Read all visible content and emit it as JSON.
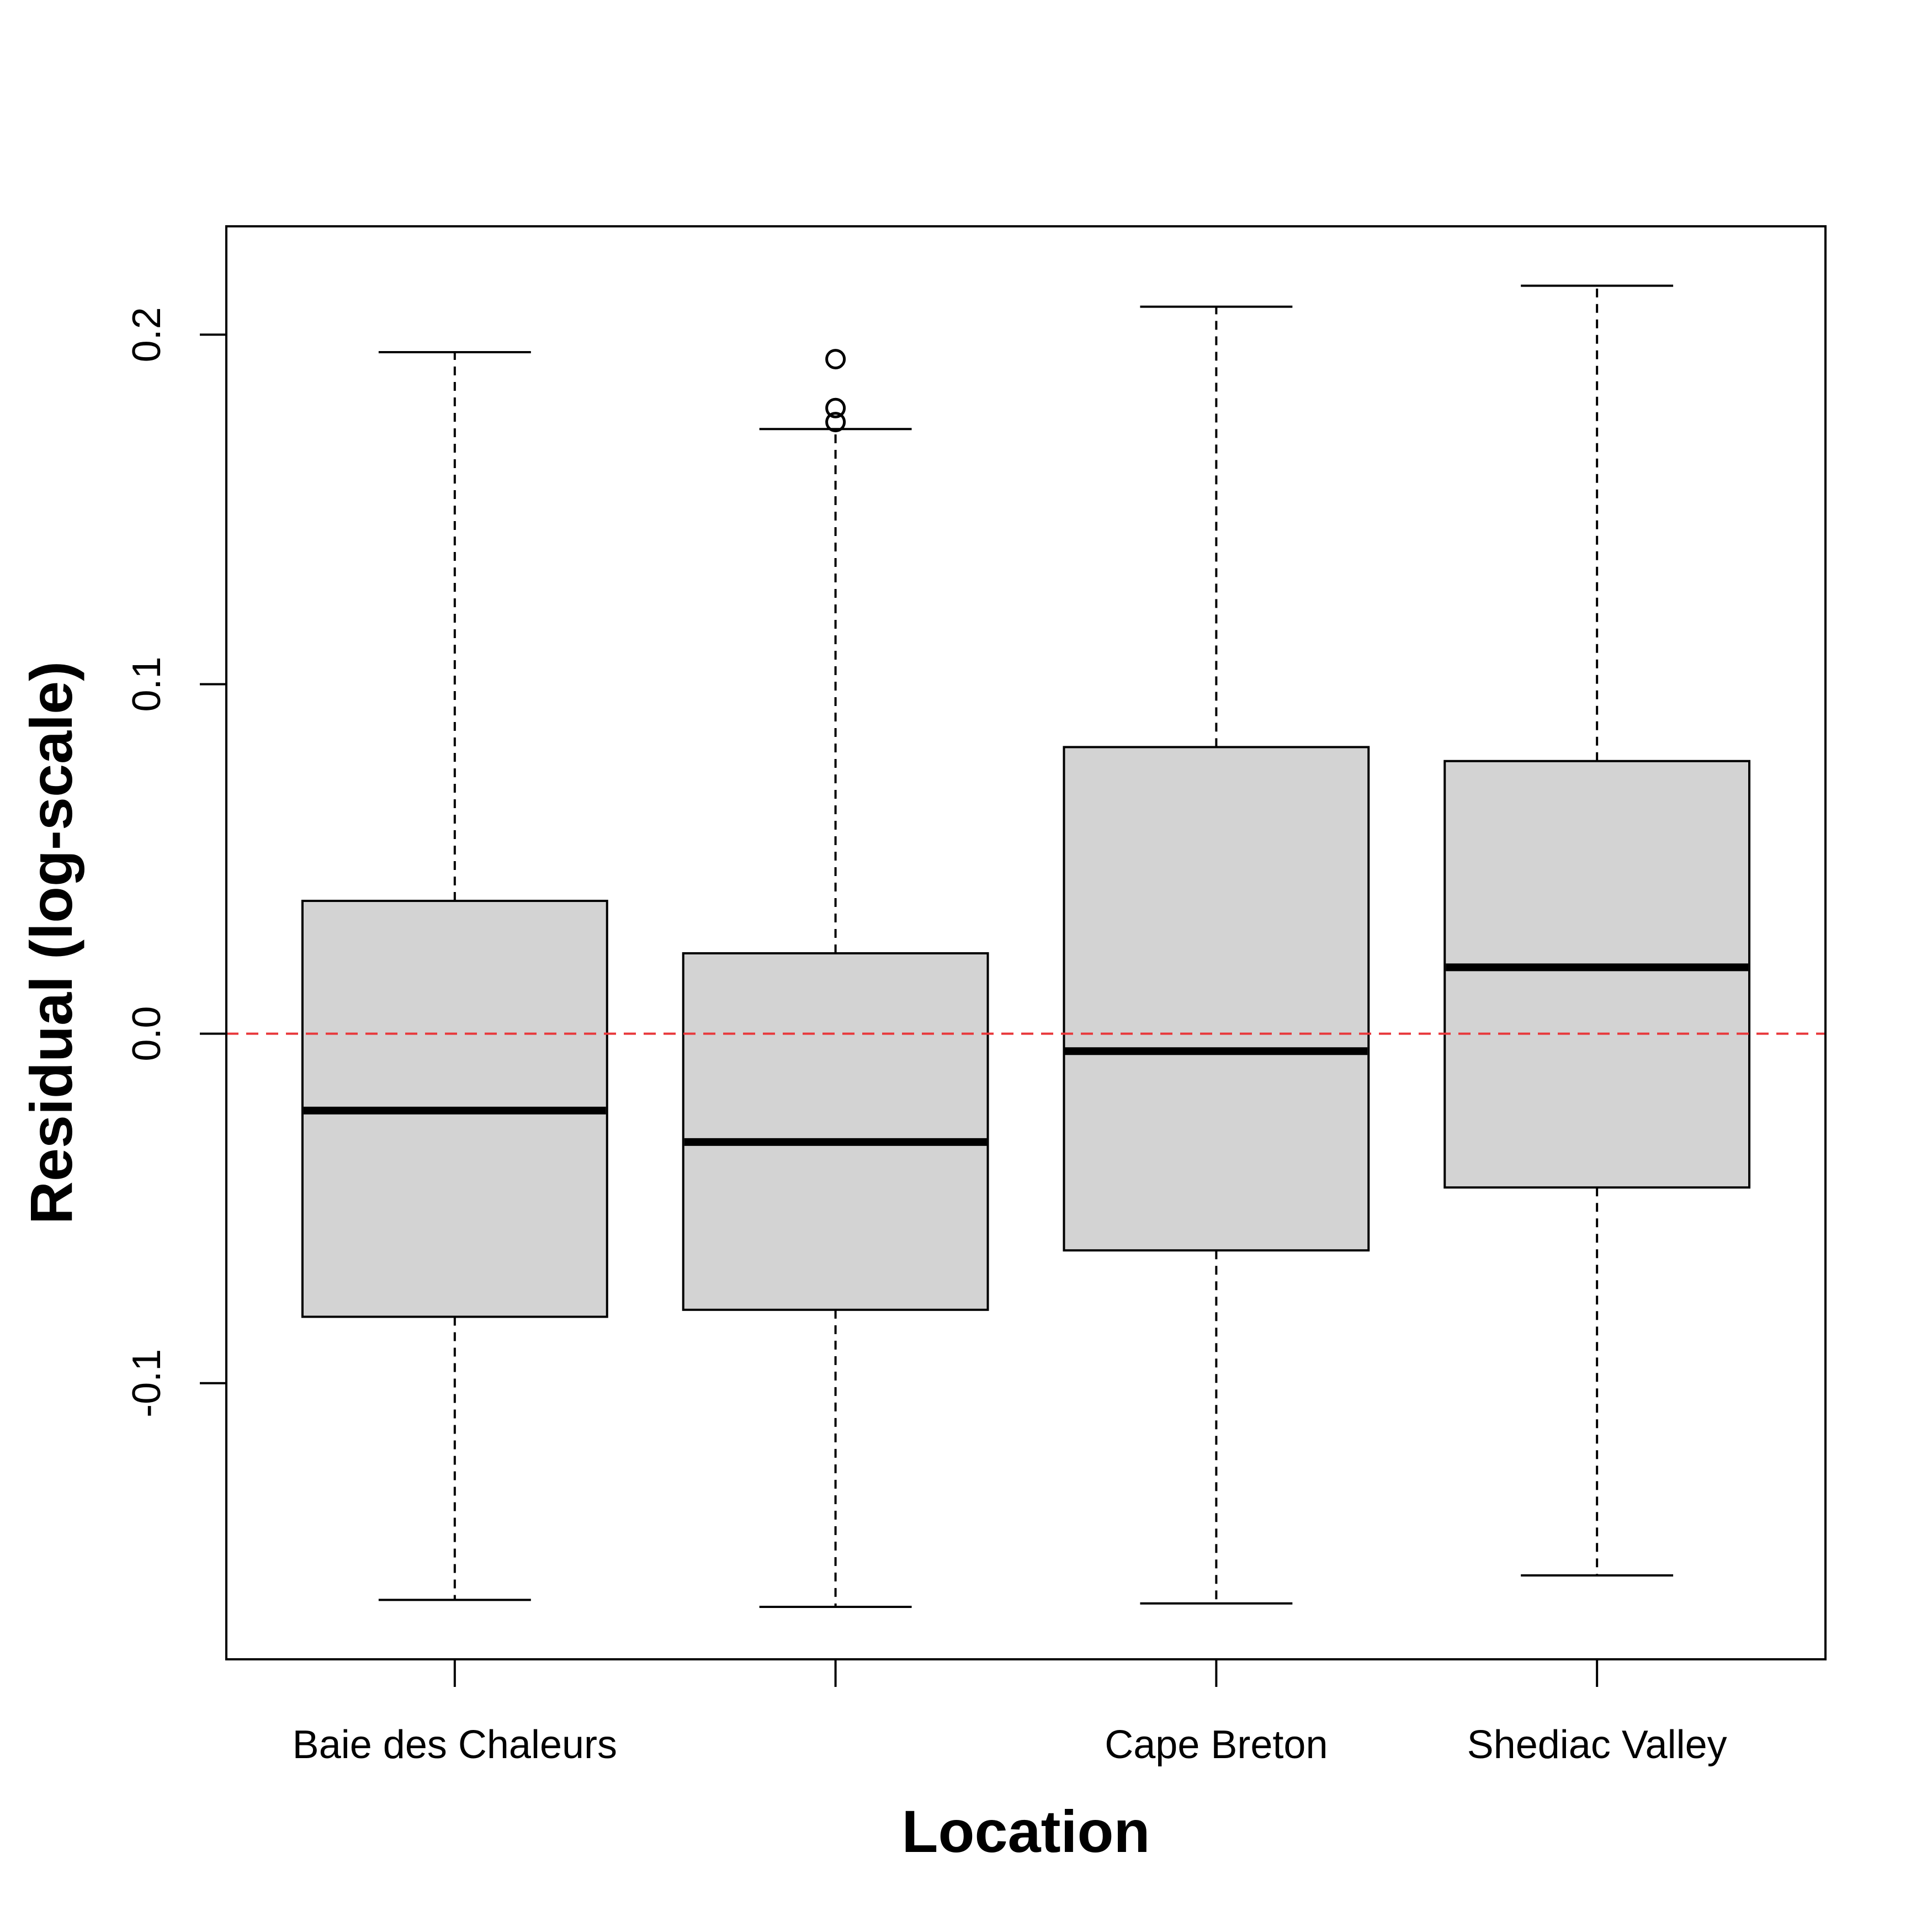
{
  "chart_data": {
    "type": "box",
    "title": "",
    "xlabel": "Location",
    "ylabel": "Residual (log-scale)",
    "ylim": [
      -0.179,
      0.231
    ],
    "y_ticks": [
      -0.1,
      0.0,
      0.1,
      0.2
    ],
    "y_tick_labels": [
      "-0.1",
      "0.0",
      "0.1",
      "0.2"
    ],
    "categories": [
      "Baie des Chaleurs",
      "",
      "Cape Breton",
      "Shediac Valley"
    ],
    "reference_line": {
      "y": 0.0,
      "color": "#e8383b",
      "style": "dashed"
    },
    "box_fill": "#d3d3d3",
    "boxes": [
      {
        "label": "Baie des Chaleurs",
        "whisker_low": -0.162,
        "q1": -0.081,
        "median": -0.022,
        "q3": 0.038,
        "whisker_high": 0.195,
        "outliers": []
      },
      {
        "label": "",
        "whisker_low": -0.164,
        "q1": -0.079,
        "median": -0.031,
        "q3": 0.023,
        "whisker_high": 0.173,
        "outliers": [
          0.193,
          0.179,
          0.175
        ]
      },
      {
        "label": "Cape Breton",
        "whisker_low": -0.163,
        "q1": -0.062,
        "median": -0.005,
        "q3": 0.082,
        "whisker_high": 0.208,
        "outliers": []
      },
      {
        "label": "Shediac Valley",
        "whisker_low": -0.155,
        "q1": -0.044,
        "median": 0.019,
        "q3": 0.078,
        "whisker_high": 0.214,
        "outliers": []
      }
    ]
  }
}
